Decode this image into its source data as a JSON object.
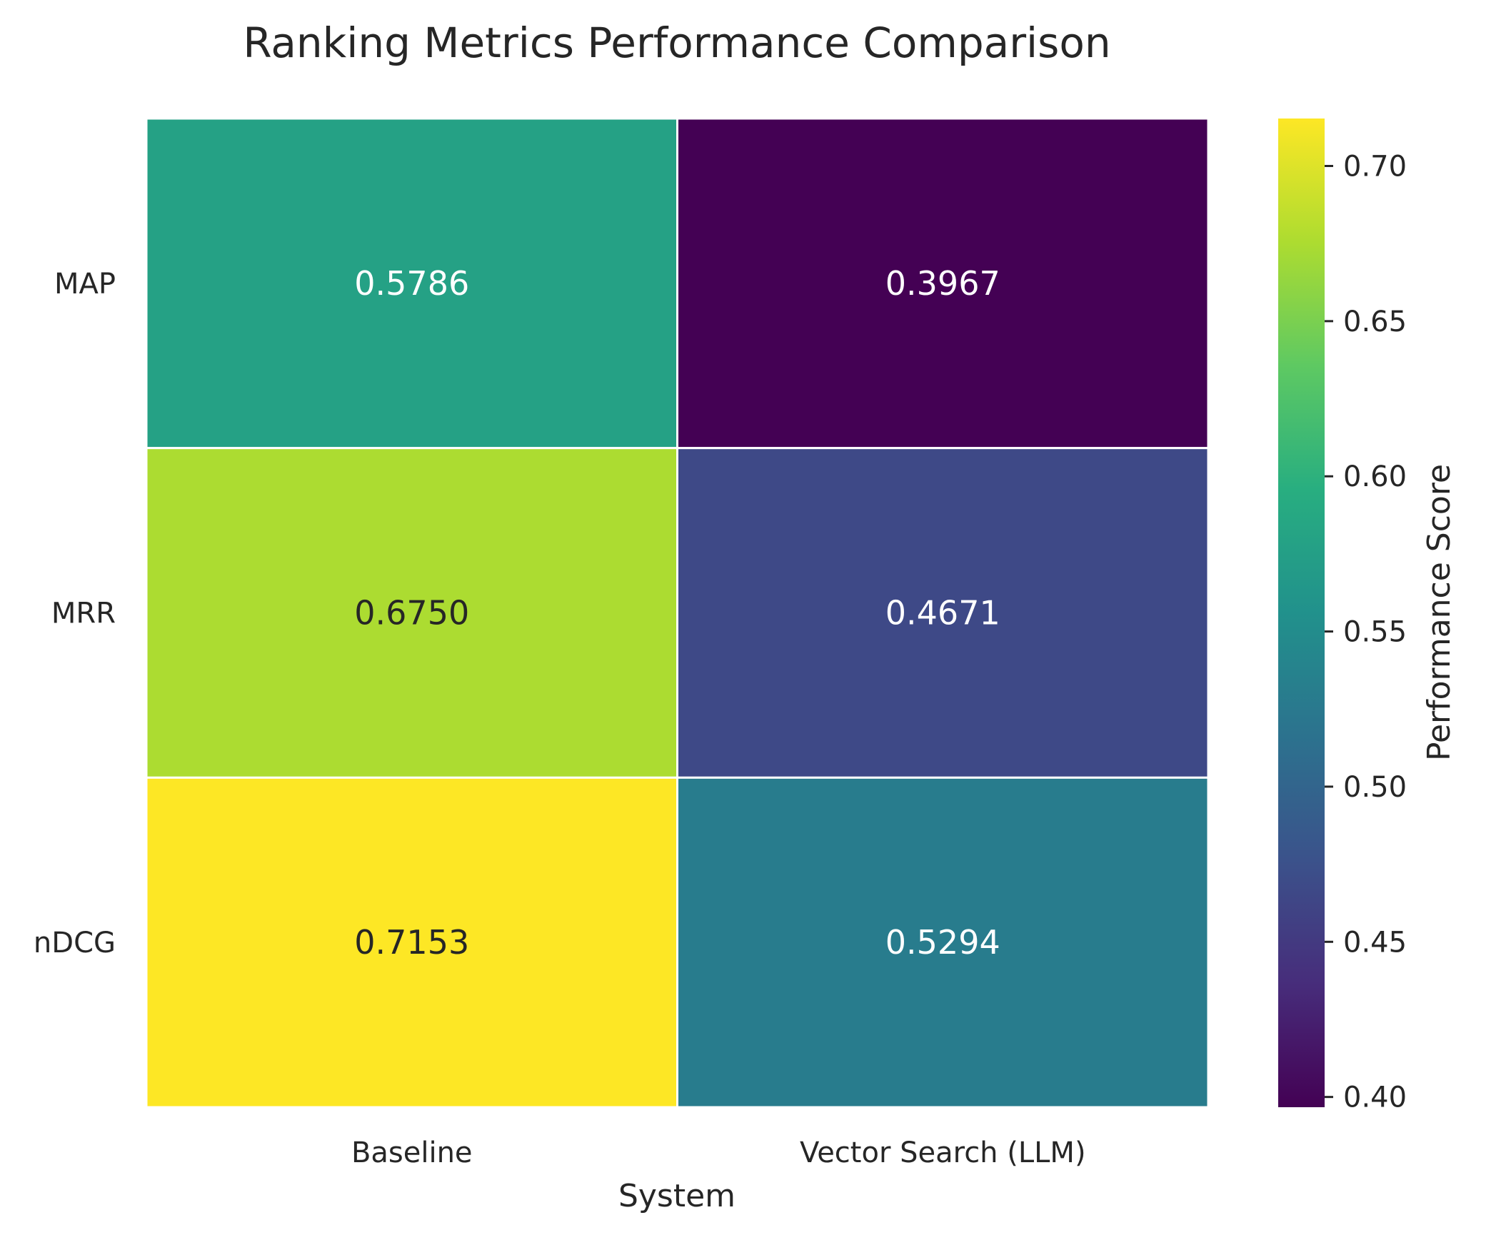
{
  "chart_data": {
    "type": "heatmap",
    "title": "Ranking Metrics Performance Comparison",
    "xlabel": "System",
    "ylabel": "",
    "x_categories": [
      "Baseline",
      "Vector Search (LLM)"
    ],
    "y_categories": [
      "MAP",
      "MRR",
      "nDCG"
    ],
    "values": [
      [
        0.5786,
        0.3967
      ],
      [
        0.675,
        0.4671
      ],
      [
        0.7153,
        0.5294
      ]
    ],
    "cell_labels": [
      [
        "0.5786",
        "0.3967"
      ],
      [
        "0.6750",
        "0.4671"
      ],
      [
        "0.7153",
        "0.5294"
      ]
    ],
    "colormap": "viridis",
    "vmin": 0.3967,
    "vmax": 0.7153,
    "colorbar": {
      "label": "Performance Score",
      "ticks": [
        0.4,
        0.45,
        0.5,
        0.55,
        0.6,
        0.65,
        0.7
      ],
      "tick_labels": [
        "0.40",
        "0.45",
        "0.50",
        "0.55",
        "0.60",
        "0.65",
        "0.70"
      ]
    },
    "colors": {
      "text_light": "#ffffff",
      "text_dark": "#262626",
      "cell_border": "#ffffff"
    }
  }
}
